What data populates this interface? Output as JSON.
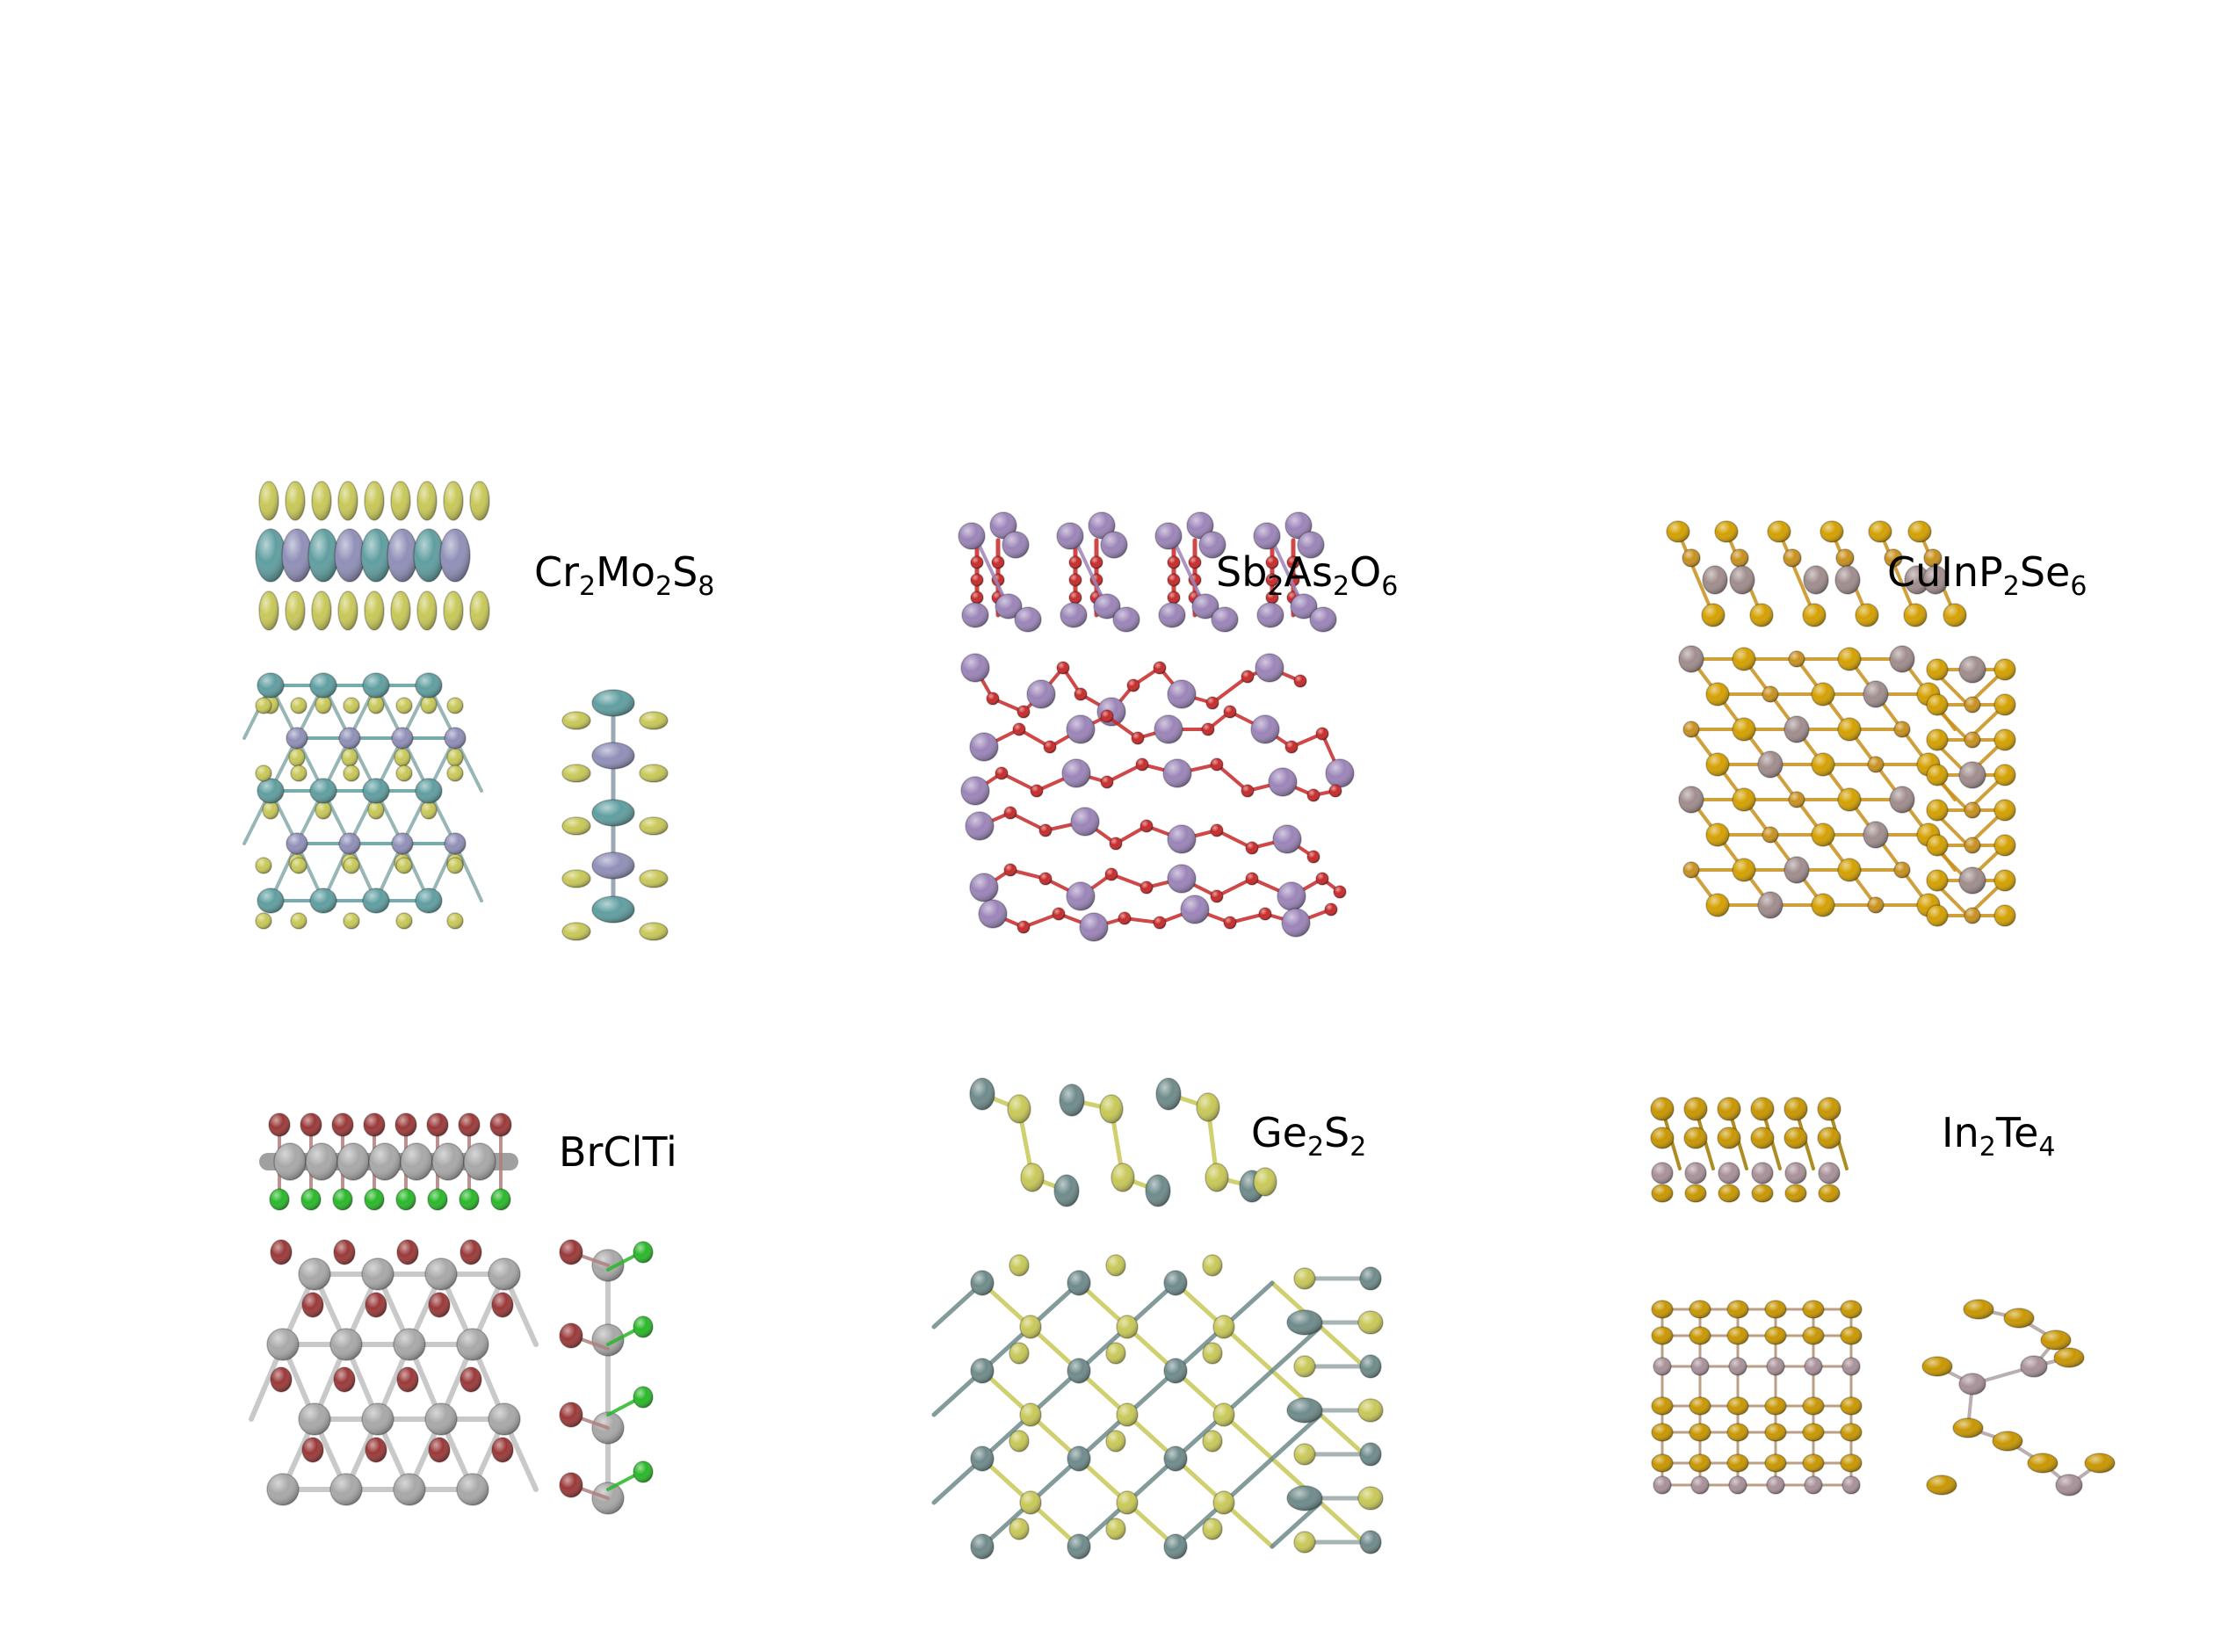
{
  "panels": [
    {
      "id": "cr2mo2s8",
      "formula": [
        [
          "Cr",
          "2"
        ],
        [
          "Mo",
          "2"
        ],
        [
          "S",
          "8"
        ]
      ],
      "elements": {
        "metal_a": "#5f9ea0",
        "metal_b": "#8f8fb8",
        "chalcogen": "#c8c858"
      }
    },
    {
      "id": "sb2as2o6",
      "formula": [
        [
          "Sb",
          "2"
        ],
        [
          "As",
          "2"
        ],
        [
          "O",
          "6"
        ]
      ],
      "elements": {
        "pnictogen": "#9b84b8",
        "oxygen": "#c82828"
      }
    },
    {
      "id": "cuinp2se6",
      "formula": [
        [
          "CuInP",
          "2"
        ],
        [
          "Se",
          "6"
        ]
      ],
      "elements": {
        "metal": "#a08c8c",
        "phosphorus": "#c8901c",
        "selenium": "#d4a000"
      }
    },
    {
      "id": "brclti",
      "formula": [
        [
          "BrClTi",
          ""
        ]
      ],
      "elements": {
        "bromine": "#9a3838",
        "chlorine": "#28b828",
        "titanium": "#a8a8a8"
      }
    },
    {
      "id": "ge2s2",
      "formula": [
        [
          "Ge",
          "2"
        ],
        [
          "S",
          "2"
        ]
      ],
      "elements": {
        "germanium": "#6e8a8a",
        "sulfur": "#c8c858"
      }
    },
    {
      "id": "in2te4",
      "formula": [
        [
          "In",
          "2"
        ],
        [
          "Te",
          "4"
        ]
      ],
      "elements": {
        "indium": "#a89098",
        "tellurium": "#c89600"
      }
    }
  ]
}
